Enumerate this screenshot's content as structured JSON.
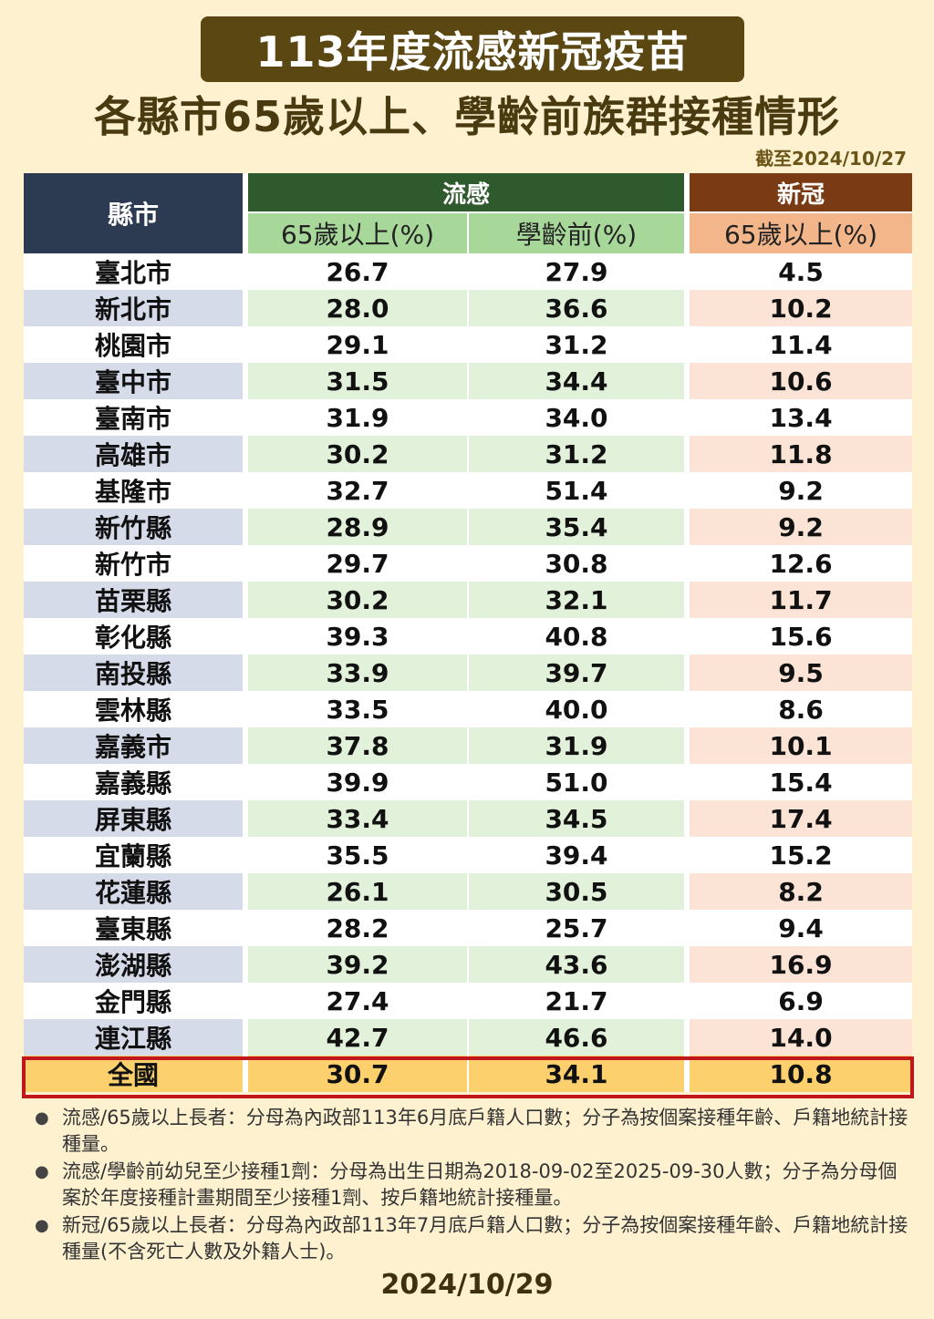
{
  "title": "113年度流感新冠疫苗",
  "subtitle": "各縣市65歲以上、學齡前族群接種情形",
  "as_of": "截至2024/10/27",
  "table": {
    "region_header": "縣市",
    "flu_header": "流感",
    "covid_header": "新冠",
    "flu_65_header": "65歲以上(%)",
    "flu_preschool_header": "學齡前(%)",
    "covid_65_header": "65歲以上(%)",
    "rows": [
      {
        "region": "臺北市",
        "flu65": "26.7",
        "flupre": "27.9",
        "covid65": "4.5"
      },
      {
        "region": "新北市",
        "flu65": "28.0",
        "flupre": "36.6",
        "covid65": "10.2"
      },
      {
        "region": "桃園市",
        "flu65": "29.1",
        "flupre": "31.2",
        "covid65": "11.4"
      },
      {
        "region": "臺中市",
        "flu65": "31.5",
        "flupre": "34.4",
        "covid65": "10.6"
      },
      {
        "region": "臺南市",
        "flu65": "31.9",
        "flupre": "34.0",
        "covid65": "13.4"
      },
      {
        "region": "高雄市",
        "flu65": "30.2",
        "flupre": "31.2",
        "covid65": "11.8"
      },
      {
        "region": "基隆市",
        "flu65": "32.7",
        "flupre": "51.4",
        "covid65": "9.2"
      },
      {
        "region": "新竹縣",
        "flu65": "28.9",
        "flupre": "35.4",
        "covid65": "9.2"
      },
      {
        "region": "新竹市",
        "flu65": "29.7",
        "flupre": "30.8",
        "covid65": "12.6"
      },
      {
        "region": "苗栗縣",
        "flu65": "30.2",
        "flupre": "32.1",
        "covid65": "11.7"
      },
      {
        "region": "彰化縣",
        "flu65": "39.3",
        "flupre": "40.8",
        "covid65": "15.6"
      },
      {
        "region": "南投縣",
        "flu65": "33.9",
        "flupre": "39.7",
        "covid65": "9.5"
      },
      {
        "region": "雲林縣",
        "flu65": "33.5",
        "flupre": "40.0",
        "covid65": "8.6"
      },
      {
        "region": "嘉義市",
        "flu65": "37.8",
        "flupre": "31.9",
        "covid65": "10.1"
      },
      {
        "region": "嘉義縣",
        "flu65": "39.9",
        "flupre": "51.0",
        "covid65": "15.4"
      },
      {
        "region": "屏東縣",
        "flu65": "33.4",
        "flupre": "34.5",
        "covid65": "17.4"
      },
      {
        "region": "宜蘭縣",
        "flu65": "35.5",
        "flupre": "39.4",
        "covid65": "15.2"
      },
      {
        "region": "花蓮縣",
        "flu65": "26.1",
        "flupre": "30.5",
        "covid65": "8.2"
      },
      {
        "region": "臺東縣",
        "flu65": "28.2",
        "flupre": "25.7",
        "covid65": "9.4"
      },
      {
        "region": "澎湖縣",
        "flu65": "39.2",
        "flupre": "43.6",
        "covid65": "16.9"
      },
      {
        "region": "金門縣",
        "flu65": "27.4",
        "flupre": "21.7",
        "covid65": "6.9"
      },
      {
        "region": "連江縣",
        "flu65": "42.7",
        "flupre": "46.6",
        "covid65": "14.0"
      }
    ],
    "total": {
      "region": "全國",
      "flu65": "30.7",
      "flupre": "34.1",
      "covid65": "10.8"
    }
  },
  "notes": [
    "流感/65歲以上長者：分母為內政部113年6月底戶籍人口數；分子為按個案接種年齡、戶籍地統計接種量。",
    "流感/學齡前幼兒至少接種1劑：分母為出生日期為2018-09-02至2025-09-30人數；分子為分母個案於年度接種計畫期間至少接種1劑、按戶籍地統計接種量。",
    "新冠/65歲以上長者：分母為內政部113年7月底戶籍人口數；分子為按個案接種年齡、戶籍地統計接種量(不含死亡人數及外籍人士)。"
  ],
  "footer_date": "2024/10/29"
}
